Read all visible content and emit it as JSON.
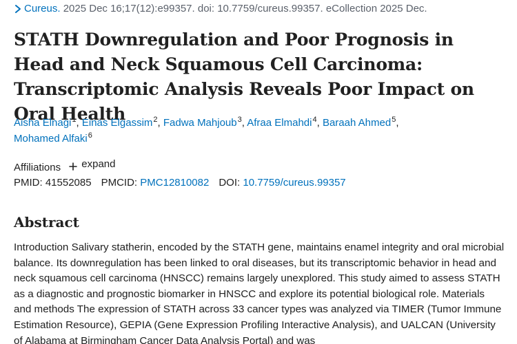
{
  "citation": {
    "journal": "Cureus.",
    "details": "2025 Dec 16;17(12):e99357. doi: 10.7759/cureus.99357. eCollection 2025 Dec."
  },
  "title": "STATH Downregulation and Poor Prognosis in Head and Neck Squamous Cell Carcinoma: Transcriptomic Analysis Reveals Poor Impact on Oral Health",
  "authors": [
    {
      "name": "Aisha Elnagi",
      "aff": "1"
    },
    {
      "name": "Einas Elgassim",
      "aff": "2"
    },
    {
      "name": "Fadwa Mahjoub",
      "aff": "3"
    },
    {
      "name": "Afraa Elmahdi",
      "aff": "4"
    },
    {
      "name": "Baraah Ahmed",
      "aff": "5"
    },
    {
      "name": "Mohamed Alfaki",
      "aff": "6"
    }
  ],
  "affiliations": {
    "label": "Affiliations",
    "expand_label": "expand"
  },
  "ids": {
    "pmid_label": "PMID:",
    "pmid": "41552085",
    "pmcid_label": "PMCID:",
    "pmcid": "PMC12810082",
    "doi_label": "DOI:",
    "doi": "10.7759/cureus.99357"
  },
  "abstract": {
    "heading": "Abstract",
    "text": "Introduction Salivary statherin, encoded by the STATH gene, maintains enamel integrity and oral microbial balance. Its downregulation has been linked to oral diseases, but its transcriptomic behavior in head and neck squamous cell carcinoma (HNSCC) remains largely unexplored. This study aimed to assess STATH as a diagnostic and prognostic biomarker in HNSCC and explore its potential biological role. Materials and methods The expression of STATH across 33 cancer types was analyzed via TIMER (Tumor Immune Estimation Resource), GEPIA (Gene Expression Profiling Interactive Analysis), and UALCAN (University of Alabama at Birmingham Cancer Data Analysis Portal) and was"
  },
  "colors": {
    "link": "#0071bc",
    "text": "#212121",
    "muted": "#5b616b"
  }
}
